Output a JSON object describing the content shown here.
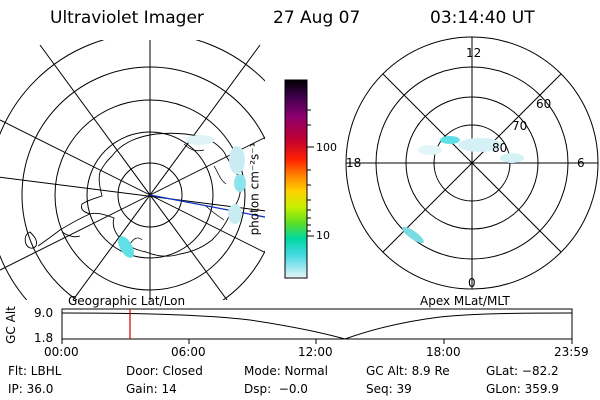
{
  "header": {
    "title": "Ultraviolet Imager",
    "date": "27 Aug 07",
    "time": "03:14:40 UT"
  },
  "geo_panel": {
    "label": "Geographic Lat/Lon"
  },
  "apex_panel": {
    "label": "Apex MLat/MLT",
    "mlt_labels": [
      "12",
      "18",
      "6",
      "0"
    ],
    "lat_labels": [
      "60",
      "70",
      "80"
    ]
  },
  "colorbar": {
    "unit_label": "photon cm⁻²s⁻¹",
    "ticks": [
      "100",
      "10"
    ],
    "colors": [
      "#000000",
      "#3a0048",
      "#8a0070",
      "#c00030",
      "#ff2000",
      "#ff8000",
      "#ffd000",
      "#c8f000",
      "#60e020",
      "#00d8a0",
      "#40d8e0",
      "#a0e8f0",
      "#e8f4f8"
    ]
  },
  "timeline": {
    "ylabel": "GC Alt",
    "ytick_top": "9.0",
    "ytick_bottom": "1.8",
    "xticks": [
      "00:00",
      "06:00",
      "12:00",
      "18:00",
      "23:59"
    ],
    "marker_time": "03:14:40",
    "marker_color": "#d00000"
  },
  "status": {
    "row1": [
      "Flt: LBHL",
      "Door: Closed",
      "Mode: Normal",
      "GC Alt: 8.9 Re",
      "GLat: −82.2"
    ],
    "row2": [
      "IP: 36.0",
      "Gain: 14",
      "Dsp:  −0.0",
      "Seq: 39",
      "GLon: 359.9"
    ]
  }
}
